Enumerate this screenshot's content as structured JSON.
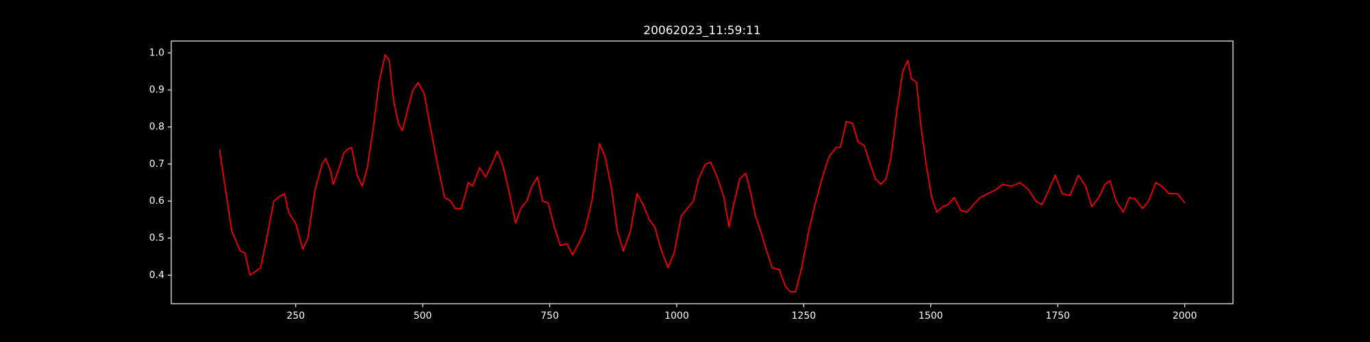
{
  "chart_data": {
    "type": "line",
    "title": "20062023_11:59:11",
    "color": "#ff0000",
    "x": [
      100,
      124,
      141,
      150,
      160,
      171,
      181,
      193,
      207,
      216,
      228,
      236,
      250,
      264,
      274,
      288,
      302,
      309,
      319,
      324,
      333,
      345,
      352,
      360,
      371,
      381,
      391,
      402,
      414,
      426,
      434,
      443,
      452,
      460,
      471,
      481,
      491,
      503,
      515,
      529,
      543,
      555,
      564,
      576,
      590,
      598,
      612,
      624,
      636,
      647,
      659,
      671,
      683,
      693,
      705,
      715,
      726,
      736,
      747,
      759,
      771,
      784,
      795,
      805,
      819,
      833,
      848,
      859,
      871,
      883,
      895,
      909,
      922,
      934,
      946,
      957,
      969,
      983,
      995,
      1009,
      1021,
      1033,
      1043,
      1057,
      1067,
      1081,
      1093,
      1103,
      1112,
      1124,
      1136,
      1146,
      1155,
      1165,
      1176,
      1188,
      1202,
      1214,
      1224,
      1234,
      1246,
      1260,
      1274,
      1288,
      1300,
      1314,
      1322,
      1334,
      1346,
      1357,
      1369,
      1381,
      1391,
      1402,
      1412,
      1422,
      1434,
      1445,
      1455,
      1462,
      1472,
      1481,
      1491,
      1502,
      1512,
      1524,
      1534,
      1546,
      1559,
      1571,
      1584,
      1598,
      1612,
      1628,
      1641,
      1659,
      1676,
      1693,
      1707,
      1719,
      1731,
      1745,
      1759,
      1774,
      1791,
      1805,
      1817,
      1831,
      1843,
      1853,
      1865,
      1879,
      1891,
      1903,
      1917,
      1929,
      1943,
      1955,
      1969,
      1986,
      2000
    ],
    "values": [
      0.74,
      0.52,
      0.465,
      0.46,
      0.4,
      0.41,
      0.42,
      0.5,
      0.6,
      0.61,
      0.62,
      0.57,
      0.54,
      0.47,
      0.5,
      0.63,
      0.7,
      0.715,
      0.68,
      0.645,
      0.68,
      0.73,
      0.74,
      0.745,
      0.67,
      0.64,
      0.69,
      0.79,
      0.92,
      0.995,
      0.98,
      0.87,
      0.81,
      0.79,
      0.85,
      0.9,
      0.92,
      0.89,
      0.8,
      0.7,
      0.61,
      0.6,
      0.58,
      0.58,
      0.65,
      0.64,
      0.69,
      0.665,
      0.7,
      0.735,
      0.69,
      0.62,
      0.54,
      0.58,
      0.6,
      0.64,
      0.665,
      0.6,
      0.595,
      0.53,
      0.48,
      0.485,
      0.455,
      0.48,
      0.52,
      0.6,
      0.755,
      0.72,
      0.64,
      0.52,
      0.465,
      0.52,
      0.62,
      0.59,
      0.55,
      0.53,
      0.47,
      0.42,
      0.46,
      0.56,
      0.58,
      0.6,
      0.66,
      0.7,
      0.705,
      0.66,
      0.61,
      0.53,
      0.59,
      0.66,
      0.675,
      0.62,
      0.56,
      0.52,
      0.47,
      0.42,
      0.415,
      0.37,
      0.355,
      0.355,
      0.42,
      0.52,
      0.6,
      0.67,
      0.72,
      0.745,
      0.745,
      0.815,
      0.81,
      0.76,
      0.75,
      0.7,
      0.66,
      0.645,
      0.66,
      0.72,
      0.85,
      0.95,
      0.98,
      0.93,
      0.92,
      0.8,
      0.7,
      0.61,
      0.57,
      0.585,
      0.59,
      0.61,
      0.575,
      0.57,
      0.59,
      0.61,
      0.62,
      0.63,
      0.645,
      0.64,
      0.65,
      0.63,
      0.6,
      0.59,
      0.625,
      0.67,
      0.62,
      0.615,
      0.67,
      0.64,
      0.585,
      0.61,
      0.645,
      0.655,
      0.6,
      0.57,
      0.61,
      0.605,
      0.58,
      0.6,
      0.65,
      0.64,
      0.62,
      0.62,
      0.595
    ],
    "xlim": [
      5,
      2095
    ],
    "ylim": [
      0.323,
      1.032
    ],
    "xticks": [
      250,
      500,
      750,
      1000,
      1250,
      1500,
      1750,
      2000
    ],
    "yticks": [
      0.4,
      0.5,
      0.6,
      0.7,
      0.8,
      0.9,
      {
        "value": 1,
        "label": "1.0"
      }
    ]
  }
}
